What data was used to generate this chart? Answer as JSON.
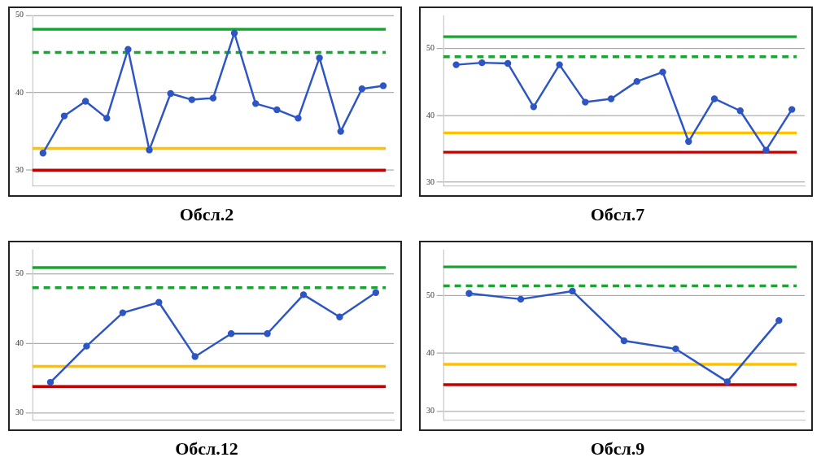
{
  "chart_data": [
    {
      "type": "line",
      "title": "Обсл.2",
      "categories": [
        null,
        null,
        null,
        null,
        null,
        null,
        null,
        null,
        null,
        null,
        null,
        null,
        null,
        null,
        null,
        null,
        null
      ],
      "series": [
        {
          "color": "#2e55c4",
          "values": [
            32.2,
            37.0,
            38.9,
            36.7,
            45.6,
            32.6,
            39.9,
            39.1,
            39.3,
            47.7,
            38.6,
            37.8,
            36.7,
            44.5,
            35.0,
            40.5,
            40.9
          ]
        }
      ],
      "ylim": [
        28,
        50
      ],
      "yticks": [
        30,
        40,
        50
      ],
      "grid": "y",
      "tick_labels": "y",
      "marker": "circle",
      "line_style": "solid",
      "ref_lines": [
        {
          "axis": "y",
          "value": 48.2,
          "color": "#1aa532",
          "line_style": "solid"
        },
        {
          "axis": "y",
          "value": 45.2,
          "color": "#1aa532",
          "line_style": "dashed"
        },
        {
          "axis": "y",
          "value": 32.8,
          "color": "#ffc000",
          "line_style": "solid"
        },
        {
          "axis": "y",
          "value": 30,
          "color": "#c00000",
          "line_style": "solid"
        }
      ]
    },
    {
      "type": "line",
      "title": "Обсл.7",
      "categories": [
        null,
        null,
        null,
        null,
        null,
        null,
        null,
        null,
        null,
        null,
        null,
        null,
        null,
        null
      ],
      "series": [
        {
          "color": "#2e55c4",
          "values": [
            47.6,
            47.9,
            47.8,
            41.3,
            47.6,
            42.0,
            42.5,
            45.1,
            46.5,
            36.1,
            42.5,
            40.7,
            34.8,
            40.9
          ]
        }
      ],
      "ylim": [
        29.5,
        55
      ],
      "yticks": [
        30,
        40,
        50
      ],
      "grid": "y",
      "tick_labels": "y",
      "marker": "circle",
      "line_style": "solid",
      "ref_lines": [
        {
          "axis": "y",
          "value": 51.8,
          "color": "#1aa532",
          "line_style": "solid"
        },
        {
          "axis": "y",
          "value": 48.8,
          "color": "#1aa532",
          "line_style": "dashed"
        },
        {
          "axis": "y",
          "value": 37.4,
          "color": "#ffc000",
          "line_style": "solid"
        },
        {
          "axis": "y",
          "value": 34.5,
          "color": "#c00000",
          "line_style": "solid"
        }
      ]
    },
    {
      "type": "line",
      "title": "Обсл.12",
      "categories": [
        null,
        null,
        null,
        null,
        null,
        null,
        null,
        null,
        null,
        null
      ],
      "series": [
        {
          "color": "#2e55c4",
          "values": [
            34.4,
            39.6,
            44.4,
            45.9,
            38.1,
            41.4,
            41.4,
            47.0,
            43.8,
            47.3
          ]
        }
      ],
      "ylim": [
        29,
        53.5
      ],
      "yticks": [
        30,
        40,
        50
      ],
      "grid": "y",
      "tick_labels": "y",
      "marker": "circle",
      "line_style": "solid",
      "ref_lines": [
        {
          "axis": "y",
          "value": 50.9,
          "color": "#1aa532",
          "line_style": "solid"
        },
        {
          "axis": "y",
          "value": 48.0,
          "color": "#1aa532",
          "line_style": "dashed"
        },
        {
          "axis": "y",
          "value": 36.7,
          "color": "#ffc000",
          "line_style": "solid"
        },
        {
          "axis": "y",
          "value": 33.8,
          "color": "#c00000",
          "line_style": "solid"
        }
      ]
    },
    {
      "type": "line",
      "title": "Обсл.9",
      "categories": [
        null,
        null,
        null,
        null,
        null,
        null,
        null
      ],
      "series": [
        {
          "color": "#2e55c4",
          "values": [
            50.4,
            49.4,
            50.8,
            42.2,
            40.8,
            35.1,
            45.7
          ]
        }
      ],
      "ylim": [
        28.5,
        58
      ],
      "yticks": [
        30,
        40,
        50
      ],
      "grid": "y",
      "tick_labels": "y",
      "marker": "circle",
      "line_style": "solid",
      "ref_lines": [
        {
          "axis": "y",
          "value": 55.0,
          "color": "#1aa532",
          "line_style": "solid"
        },
        {
          "axis": "y",
          "value": 51.7,
          "color": "#1aa532",
          "line_style": "dashed"
        },
        {
          "axis": "y",
          "value": 38.1,
          "color": "#ffc000",
          "line_style": "solid"
        },
        {
          "axis": "y",
          "value": 34.6,
          "color": "#c00000",
          "line_style": "solid"
        }
      ]
    }
  ]
}
